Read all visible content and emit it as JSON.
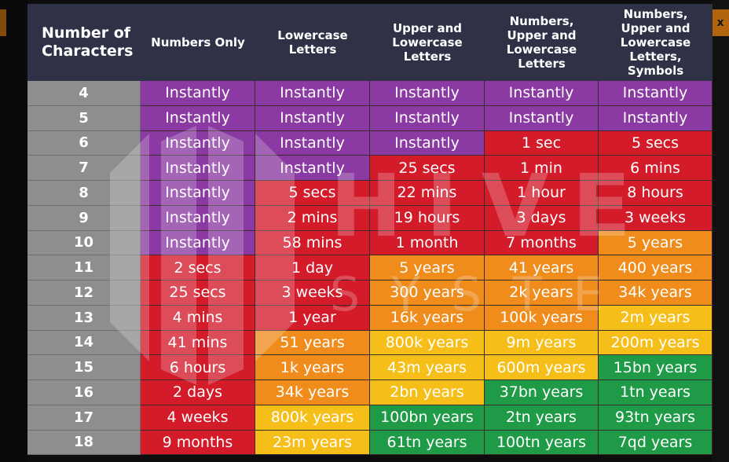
{
  "header": {
    "first": "Number of Characters",
    "columns": [
      "Numbers Only",
      "Lowercase Letters",
      "Upper and Lowercase Letters",
      "Numbers, Upper and Lowercase Letters",
      "Numbers, Upper and Lowercase Letters, Symbols"
    ]
  },
  "colors": {
    "purple": "#8b3aa3",
    "red": "#d31b2a",
    "orange": "#ef8c1c",
    "yellow": "#f6be18",
    "green": "#1f9b47",
    "header_bg": "#2f3246",
    "row_header_bg": "#8e8e90"
  },
  "watermark": {
    "icon": "hive-logo-icon",
    "word1": "HIVE",
    "word2": "SYSTEMS"
  },
  "rows": [
    {
      "chars": "4",
      "cells": [
        {
          "t": "Instantly",
          "c": "purple"
        },
        {
          "t": "Instantly",
          "c": "purple"
        },
        {
          "t": "Instantly",
          "c": "purple"
        },
        {
          "t": "Instantly",
          "c": "purple"
        },
        {
          "t": "Instantly",
          "c": "purple"
        }
      ]
    },
    {
      "chars": "5",
      "cells": [
        {
          "t": "Instantly",
          "c": "purple"
        },
        {
          "t": "Instantly",
          "c": "purple"
        },
        {
          "t": "Instantly",
          "c": "purple"
        },
        {
          "t": "Instantly",
          "c": "purple"
        },
        {
          "t": "Instantly",
          "c": "purple"
        }
      ]
    },
    {
      "chars": "6",
      "cells": [
        {
          "t": "Instantly",
          "c": "purple"
        },
        {
          "t": "Instantly",
          "c": "purple"
        },
        {
          "t": "Instantly",
          "c": "purple"
        },
        {
          "t": "1 sec",
          "c": "red"
        },
        {
          "t": "5 secs",
          "c": "red"
        }
      ]
    },
    {
      "chars": "7",
      "cells": [
        {
          "t": "Instantly",
          "c": "purple"
        },
        {
          "t": "Instantly",
          "c": "purple"
        },
        {
          "t": "25 secs",
          "c": "red"
        },
        {
          "t": "1 min",
          "c": "red"
        },
        {
          "t": "6 mins",
          "c": "red"
        }
      ]
    },
    {
      "chars": "8",
      "cells": [
        {
          "t": "Instantly",
          "c": "purple"
        },
        {
          "t": "5 secs",
          "c": "red"
        },
        {
          "t": "22 mins",
          "c": "red"
        },
        {
          "t": "1 hour",
          "c": "red"
        },
        {
          "t": "8 hours",
          "c": "red"
        }
      ]
    },
    {
      "chars": "9",
      "cells": [
        {
          "t": "Instantly",
          "c": "purple"
        },
        {
          "t": "2 mins",
          "c": "red"
        },
        {
          "t": "19 hours",
          "c": "red"
        },
        {
          "t": "3 days",
          "c": "red"
        },
        {
          "t": "3 weeks",
          "c": "red"
        }
      ]
    },
    {
      "chars": "10",
      "cells": [
        {
          "t": "Instantly",
          "c": "purple"
        },
        {
          "t": "58 mins",
          "c": "red"
        },
        {
          "t": "1 month",
          "c": "red"
        },
        {
          "t": "7 months",
          "c": "red"
        },
        {
          "t": "5 years",
          "c": "orange"
        }
      ]
    },
    {
      "chars": "11",
      "cells": [
        {
          "t": "2 secs",
          "c": "red"
        },
        {
          "t": "1 day",
          "c": "red"
        },
        {
          "t": "5 years",
          "c": "orange"
        },
        {
          "t": "41 years",
          "c": "orange"
        },
        {
          "t": "400 years",
          "c": "orange"
        }
      ]
    },
    {
      "chars": "12",
      "cells": [
        {
          "t": "25 secs",
          "c": "red"
        },
        {
          "t": "3 weeks",
          "c": "red"
        },
        {
          "t": "300 years",
          "c": "orange"
        },
        {
          "t": "2k years",
          "c": "orange"
        },
        {
          "t": "34k years",
          "c": "orange"
        }
      ]
    },
    {
      "chars": "13",
      "cells": [
        {
          "t": "4 mins",
          "c": "red"
        },
        {
          "t": "1 year",
          "c": "red"
        },
        {
          "t": "16k years",
          "c": "orange"
        },
        {
          "t": "100k years",
          "c": "orange"
        },
        {
          "t": "2m years",
          "c": "yellow"
        }
      ]
    },
    {
      "chars": "14",
      "cells": [
        {
          "t": "41 mins",
          "c": "red"
        },
        {
          "t": "51 years",
          "c": "orange"
        },
        {
          "t": "800k years",
          "c": "yellow"
        },
        {
          "t": "9m years",
          "c": "yellow"
        },
        {
          "t": "200m years",
          "c": "yellow"
        }
      ]
    },
    {
      "chars": "15",
      "cells": [
        {
          "t": "6 hours",
          "c": "red"
        },
        {
          "t": "1k years",
          "c": "orange"
        },
        {
          "t": "43m years",
          "c": "yellow"
        },
        {
          "t": "600m years",
          "c": "yellow"
        },
        {
          "t": "15bn years",
          "c": "green"
        }
      ]
    },
    {
      "chars": "16",
      "cells": [
        {
          "t": "2 days",
          "c": "red"
        },
        {
          "t": "34k years",
          "c": "orange"
        },
        {
          "t": "2bn years",
          "c": "yellow"
        },
        {
          "t": "37bn years",
          "c": "green"
        },
        {
          "t": "1tn years",
          "c": "green"
        }
      ]
    },
    {
      "chars": "17",
      "cells": [
        {
          "t": "4 weeks",
          "c": "red"
        },
        {
          "t": "800k years",
          "c": "yellow"
        },
        {
          "t": "100bn years",
          "c": "green"
        },
        {
          "t": "2tn years",
          "c": "green"
        },
        {
          "t": "93tn years",
          "c": "green"
        }
      ]
    },
    {
      "chars": "18",
      "cells": [
        {
          "t": "9 months",
          "c": "red"
        },
        {
          "t": "23m years",
          "c": "yellow"
        },
        {
          "t": "61tn years",
          "c": "green"
        },
        {
          "t": "100tn years",
          "c": "green"
        },
        {
          "t": "7qd years",
          "c": "green"
        }
      ]
    }
  ]
}
